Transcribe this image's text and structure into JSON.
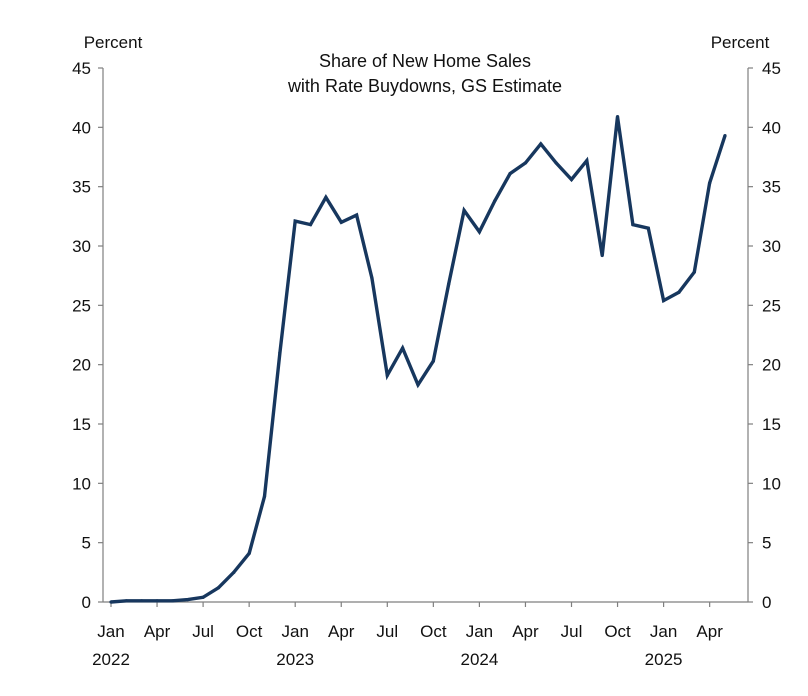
{
  "chart_data": {
    "type": "line",
    "title_lines": [
      "Share of New Home Sales",
      "with Rate Buydowns, GS Estimate"
    ],
    "ylabel_left": "Percent",
    "ylabel_right": "Percent",
    "ylim": [
      0,
      45
    ],
    "yticks": [
      0,
      5,
      10,
      15,
      20,
      25,
      30,
      35,
      40,
      45
    ],
    "x_ticks": [
      {
        "month": "Jan",
        "year": "2022",
        "index": 0
      },
      {
        "month": "Apr",
        "year": "",
        "index": 3
      },
      {
        "month": "Jul",
        "year": "",
        "index": 6
      },
      {
        "month": "Oct",
        "year": "",
        "index": 9
      },
      {
        "month": "Jan",
        "year": "2023",
        "index": 12
      },
      {
        "month": "Apr",
        "year": "",
        "index": 15
      },
      {
        "month": "Jul",
        "year": "",
        "index": 18
      },
      {
        "month": "Oct",
        "year": "",
        "index": 21
      },
      {
        "month": "Jan",
        "year": "2024",
        "index": 24
      },
      {
        "month": "Apr",
        "year": "",
        "index": 27
      },
      {
        "month": "Jul",
        "year": "",
        "index": 30
      },
      {
        "month": "Oct",
        "year": "",
        "index": 33
      },
      {
        "month": "Jan",
        "year": "2025",
        "index": 36
      },
      {
        "month": "Apr",
        "year": "",
        "index": 39
      }
    ],
    "series": [
      {
        "color": "#17375e",
        "values": [
          0.0,
          0.1,
          0.1,
          0.1,
          0.1,
          0.2,
          0.4,
          1.2,
          2.5,
          4.1,
          8.9,
          21.0,
          32.1,
          31.8,
          34.1,
          32.0,
          32.6,
          27.3,
          19.1,
          21.4,
          18.3,
          20.3,
          26.8,
          33.0,
          31.2,
          33.8,
          36.1,
          37.0,
          38.6,
          37.0,
          35.6,
          37.2,
          29.2,
          40.9,
          31.8,
          31.5,
          25.4,
          26.1,
          27.8,
          35.3,
          39.3
        ]
      }
    ]
  }
}
